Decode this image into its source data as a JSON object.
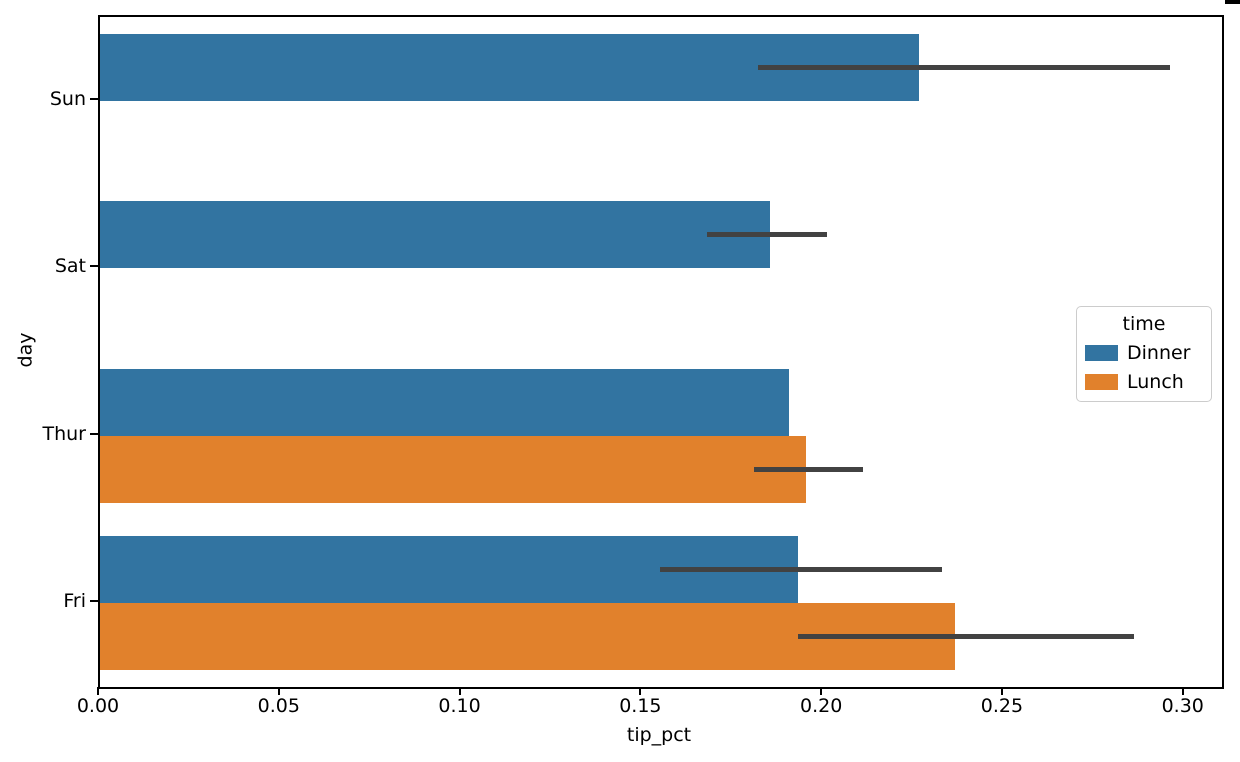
{
  "figure": {
    "background": "#ffffff",
    "spine_color": "#000000"
  },
  "chart_data": {
    "type": "bar",
    "orientation": "horizontal",
    "title": "",
    "xlabel": "tip_pct",
    "ylabel": "day",
    "categories": [
      "Sun",
      "Sat",
      "Thur",
      "Fri"
    ],
    "xlim": [
      0.0,
      0.3103
    ],
    "xticks": [
      0.0,
      0.05,
      0.1,
      0.15,
      0.2,
      0.25,
      0.3
    ],
    "xtick_labels": [
      "0.00",
      "0.05",
      "0.10",
      "0.15",
      "0.20",
      "0.25",
      "0.30"
    ],
    "grid": false,
    "error_bar_color": "#424242",
    "legend": {
      "title": "time",
      "position": "center-right",
      "entries": [
        "Dinner",
        "Lunch"
      ]
    },
    "series": [
      {
        "name": "Dinner",
        "color": "#3274a1",
        "values": [
          0.2266,
          0.1853,
          0.1905,
          0.193
        ],
        "ci": [
          [
            0.182,
            0.296
          ],
          [
            0.168,
            0.201
          ],
          null,
          [
            0.155,
            0.233
          ]
        ]
      },
      {
        "name": "Lunch",
        "color": "#e1812c",
        "values": [
          null,
          null,
          0.1952,
          0.2364
        ],
        "ci": [
          null,
          null,
          [
            0.181,
            0.211
          ],
          [
            0.193,
            0.286
          ]
        ]
      }
    ]
  }
}
